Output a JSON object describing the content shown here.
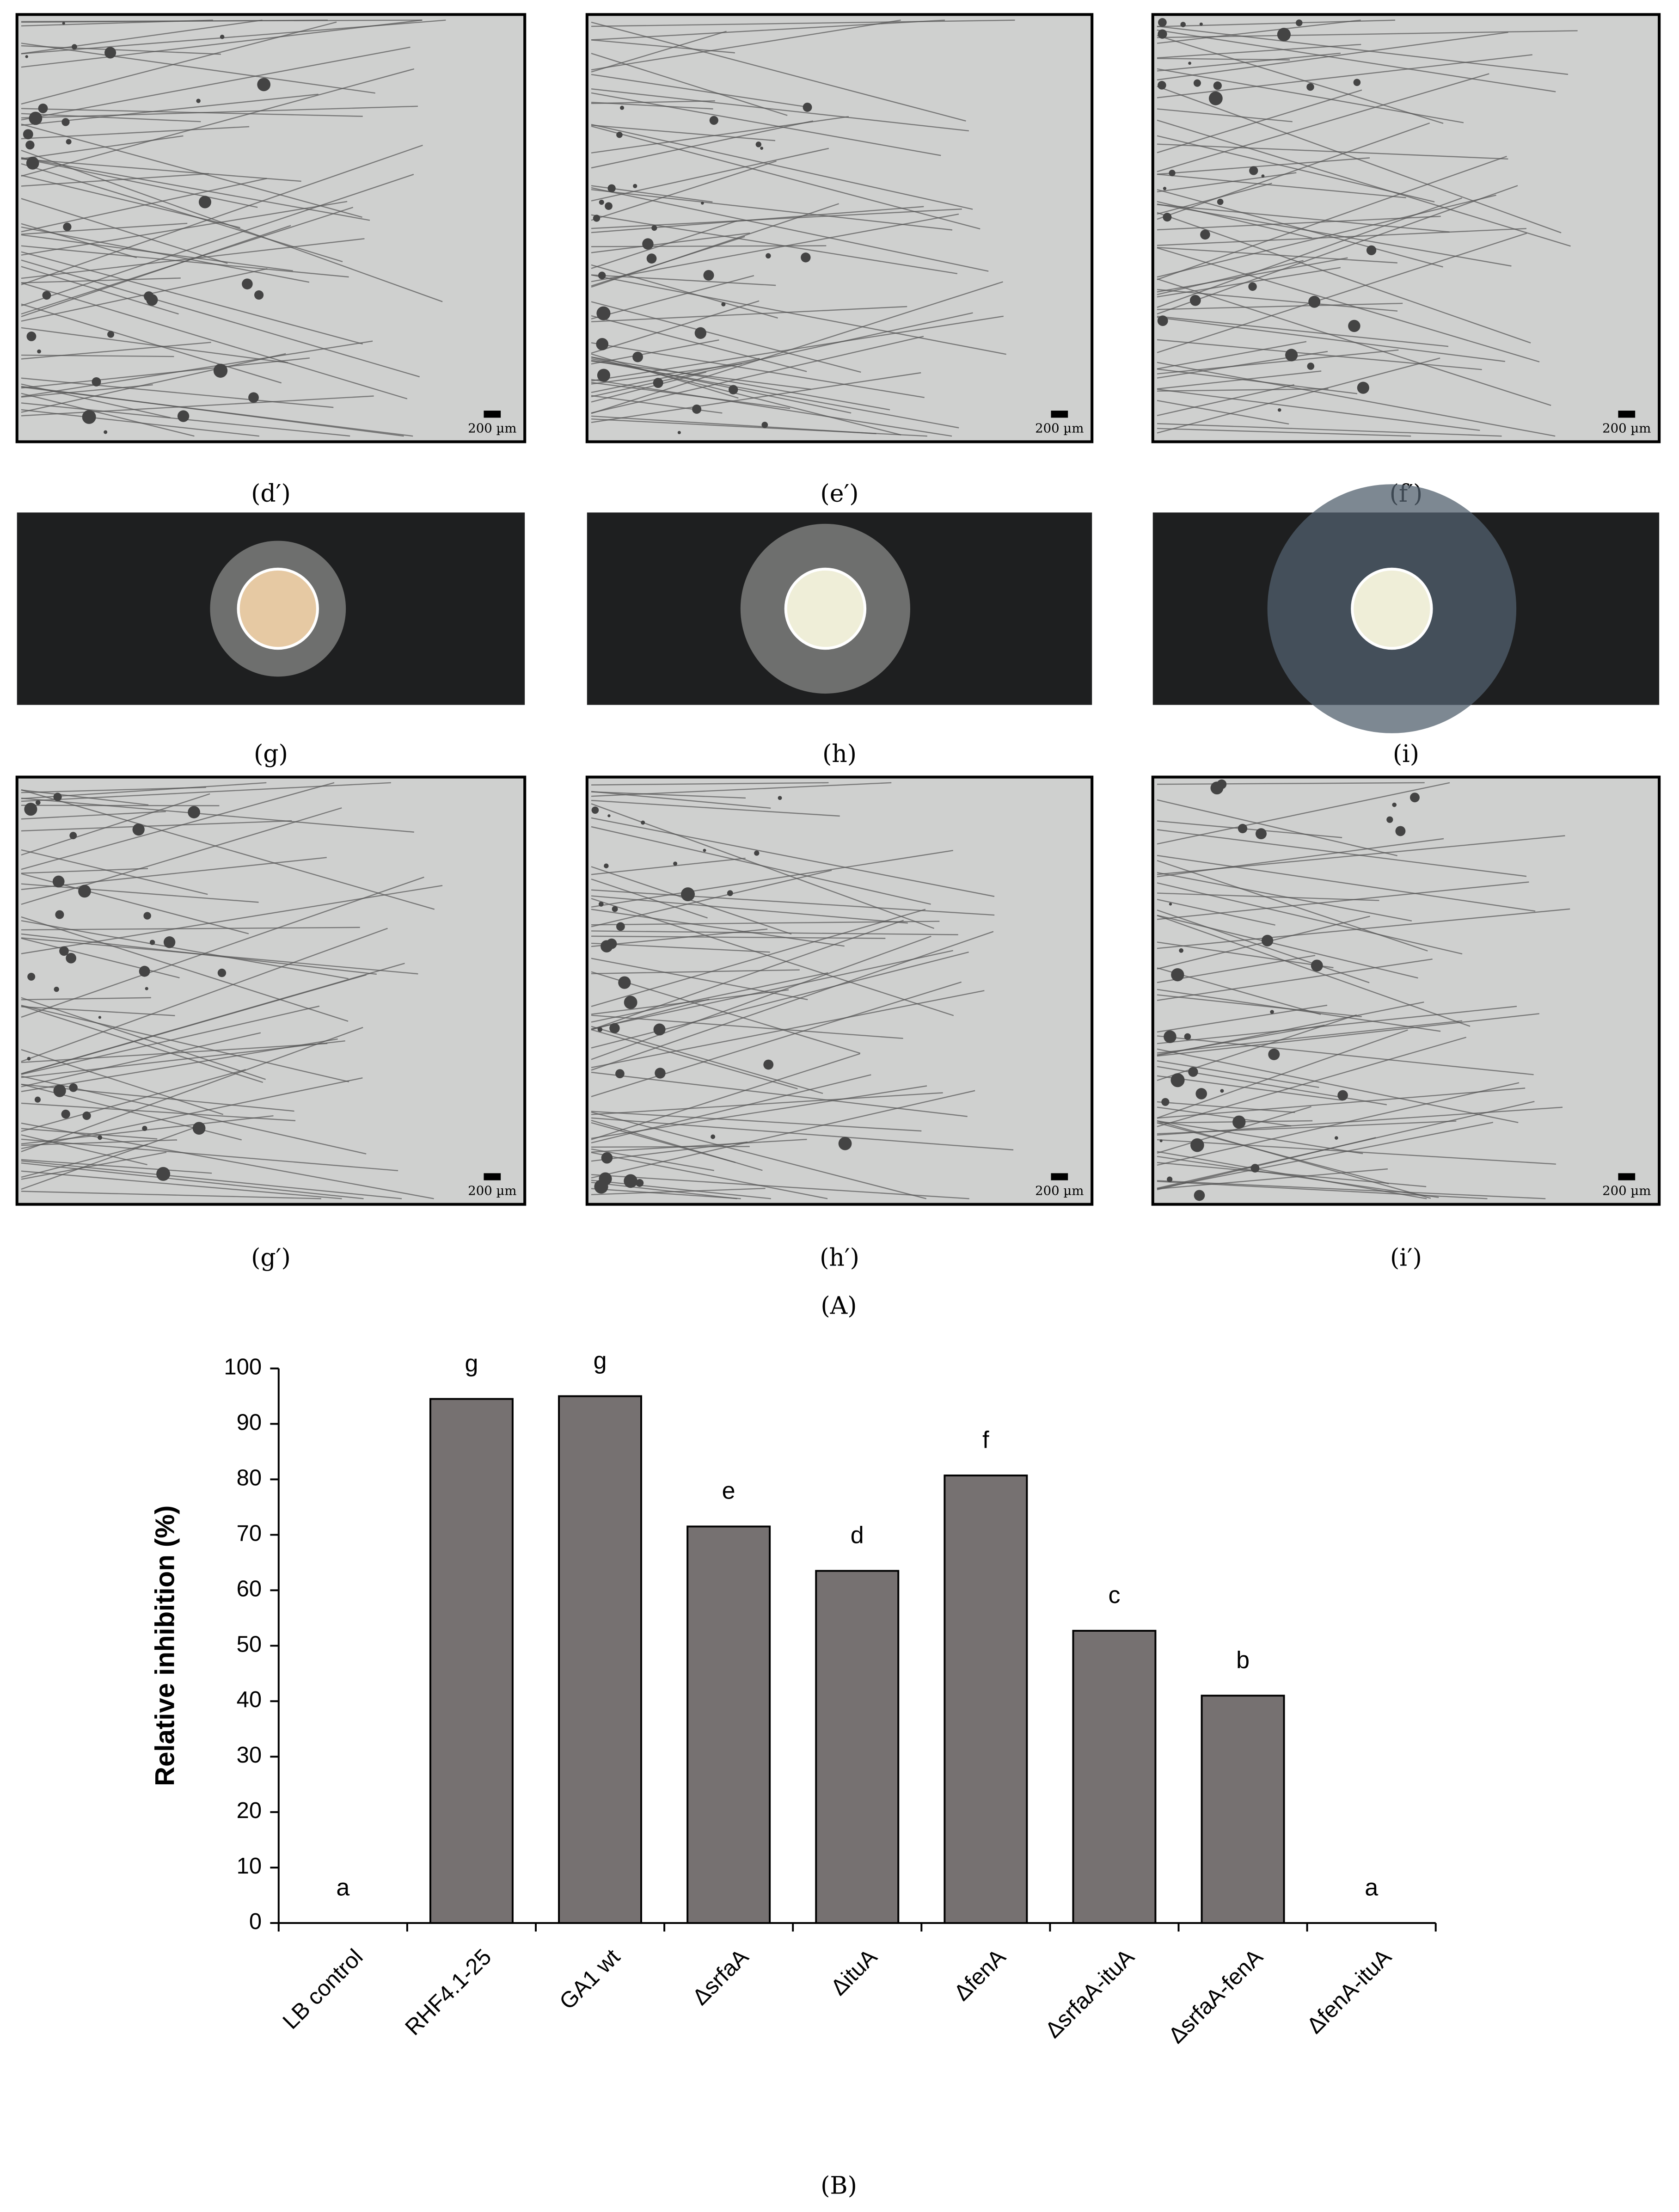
{
  "panels": [
    {
      "label": "(d′)",
      "scale_bar": "200 µm"
    },
    {
      "label": "(e′)",
      "scale_bar": "200 µm"
    },
    {
      "label": "(f′)",
      "scale_bar": "200 µm"
    },
    {
      "label": "(g)"
    },
    {
      "label": "(h)"
    },
    {
      "label": "(i)"
    },
    {
      "label": "(g′)",
      "scale_bar": "200 µm"
    },
    {
      "label": "(h′)",
      "scale_bar": "200 µm"
    },
    {
      "label": "(i′)",
      "scale_bar": "200 µm"
    }
  ],
  "part_a_label": "(A)",
  "part_b_label": "(B)",
  "chart_data": {
    "type": "bar",
    "y_label": "Relative inhibition (%)",
    "categories": [
      "LB control",
      "RHF4.1-25",
      "GA1 wt",
      "ΔsrfaA",
      "ΔituA",
      "ΔfenA",
      "ΔsrfaA-ituA",
      "ΔsrfaA-fenA",
      "ΔfenA-ituA"
    ],
    "values": [
      0,
      94.5,
      95,
      71.5,
      63.5,
      80.7,
      52.7,
      41,
      0
    ],
    "annotations": [
      "a",
      "g",
      "g",
      "e",
      "d",
      "f",
      "c",
      "b",
      "a"
    ],
    "color": "#767171",
    "ylim": [
      0,
      100
    ],
    "yticks": [
      0,
      10,
      20,
      30,
      40,
      50,
      60,
      70,
      80,
      90,
      100
    ]
  }
}
